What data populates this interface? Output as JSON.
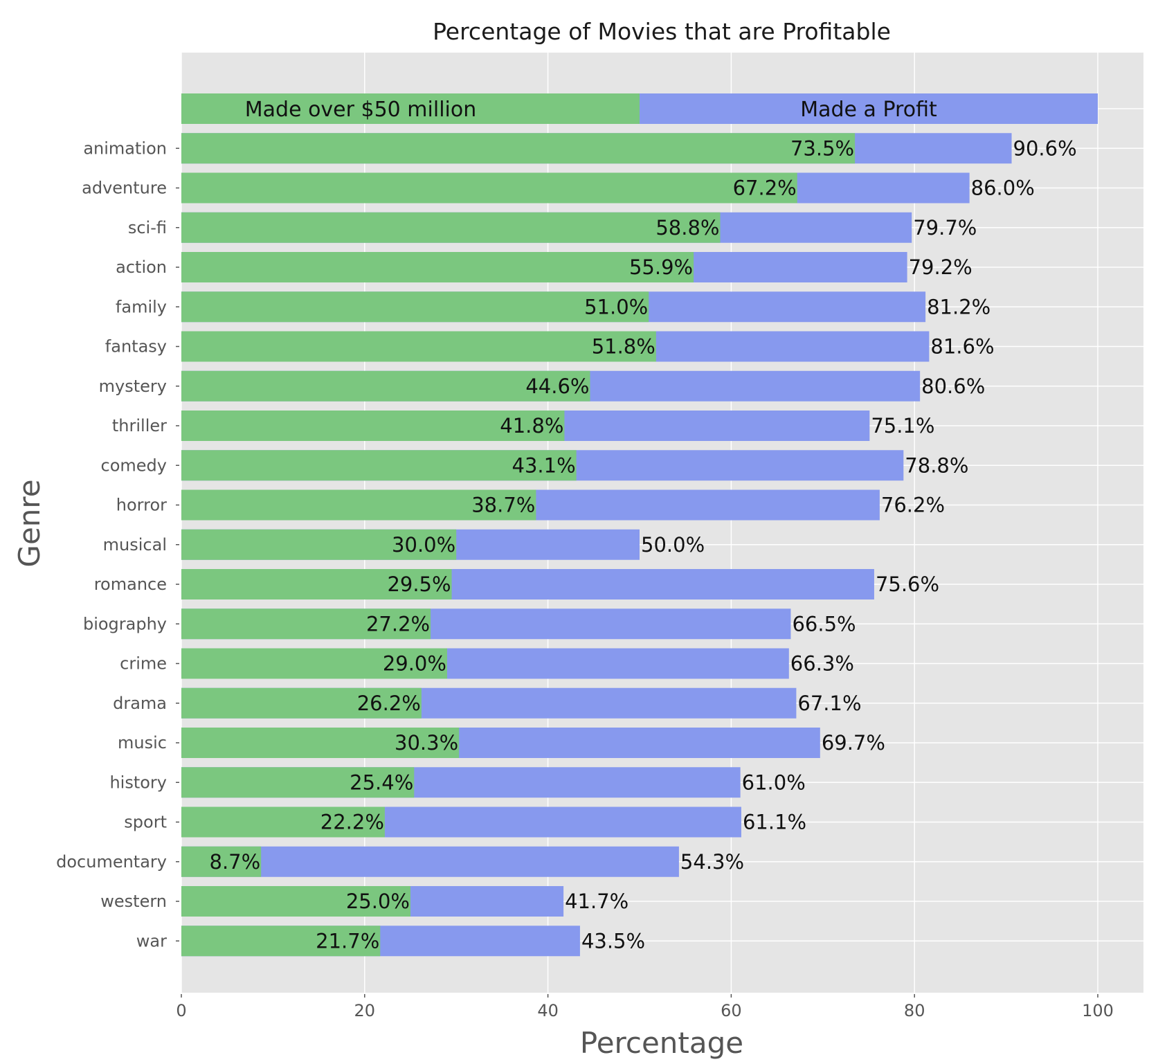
{
  "chart_data": {
    "type": "bar",
    "orientation": "horizontal",
    "title": "Percentage of Movies that are Profitable",
    "xlabel": "Percentage",
    "ylabel": "Genre",
    "xlim": [
      0,
      100
    ],
    "xticks": [
      0,
      20,
      40,
      60,
      80,
      100
    ],
    "grid": true,
    "categories": [
      "animation",
      "adventure",
      "sci-fi",
      "action",
      "family",
      "fantasy",
      "mystery",
      "thriller",
      "comedy",
      "horror",
      "musical",
      "romance",
      "biography",
      "crime",
      "drama",
      "music",
      "history",
      "sport",
      "documentary",
      "western",
      "war"
    ],
    "series": [
      {
        "name": "Made a Profit",
        "color": "#8799ee",
        "values": [
          90.6,
          86.0,
          79.7,
          79.2,
          81.2,
          81.6,
          80.6,
          75.1,
          78.8,
          76.2,
          50.0,
          75.6,
          66.5,
          66.3,
          67.1,
          69.7,
          61.0,
          61.1,
          54.3,
          41.7,
          43.5
        ],
        "labels": [
          "90.6%",
          "86.0%",
          "79.7%",
          "79.2%",
          "81.2%",
          "81.6%",
          "80.6%",
          "75.1%",
          "78.8%",
          "76.2%",
          "50.0%",
          "75.6%",
          "66.5%",
          "66.3%",
          "67.1%",
          "69.7%",
          "61.0%",
          "61.1%",
          "54.3%",
          "41.7%",
          "43.5%"
        ]
      },
      {
        "name": "Made over $50 million",
        "color": "#7bc77f",
        "values": [
          73.5,
          67.2,
          58.8,
          55.9,
          51.0,
          51.8,
          44.6,
          41.8,
          43.1,
          38.7,
          30.0,
          29.5,
          27.2,
          29.0,
          26.2,
          30.3,
          25.4,
          22.2,
          8.7,
          25.0,
          21.7
        ],
        "labels": [
          "73.5%",
          "67.2%",
          "58.8%",
          "55.9%",
          "51.0%",
          "51.8%",
          "44.6%",
          "41.8%",
          "43.1%",
          "38.7%",
          "30.0%",
          "29.5%",
          "27.2%",
          "29.0%",
          "26.2%",
          "30.3%",
          "25.4%",
          "22.2%",
          "8.7%",
          "25.0%",
          "21.7%"
        ]
      }
    ],
    "legend": {
      "placement": "top-bar",
      "green_label": "Made over $50 million",
      "blue_label": "Made a Profit",
      "split_at": 50
    },
    "colors": {
      "background": "#e5e5e5",
      "grid": "#ffffff"
    }
  }
}
